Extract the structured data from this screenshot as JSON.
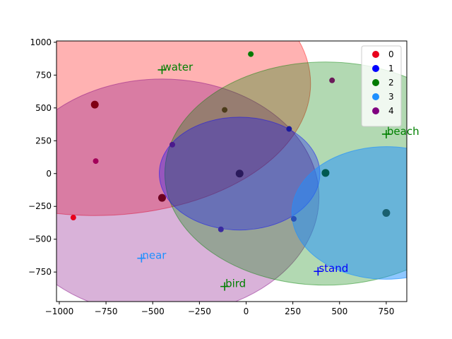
{
  "chart_data": {
    "type": "scatter",
    "xlim": [
      -1015,
      860
    ],
    "ylim": [
      -975,
      1010
    ],
    "x_ticks": [
      {
        "value": -1000,
        "label": "−1000"
      },
      {
        "value": -750,
        "label": "−750"
      },
      {
        "value": -500,
        "label": "−500"
      },
      {
        "value": -250,
        "label": "−250"
      },
      {
        "value": 0,
        "label": "0"
      },
      {
        "value": 250,
        "label": "250"
      },
      {
        "value": 500,
        "label": "500"
      },
      {
        "value": 750,
        "label": "750"
      }
    ],
    "y_ticks": [
      {
        "value": -750,
        "label": "−750"
      },
      {
        "value": -500,
        "label": "−500"
      },
      {
        "value": -250,
        "label": "−250"
      },
      {
        "value": 0,
        "label": "0"
      },
      {
        "value": 250,
        "label": "250"
      },
      {
        "value": 500,
        "label": "500"
      },
      {
        "value": 750,
        "label": "750"
      },
      {
        "value": 1000,
        "label": "1000"
      }
    ],
    "grid": false,
    "legend": {
      "placement": "top-right",
      "entries": [
        {
          "label": "0",
          "color": "#e8001c"
        },
        {
          "label": "1",
          "color": "#0000ff"
        },
        {
          "label": "2",
          "color": "#007a00"
        },
        {
          "label": "3",
          "color": "#1e90ff"
        },
        {
          "label": "4",
          "color": "#800080"
        }
      ]
    },
    "regions": [
      {
        "cluster": "0",
        "cx": -810,
        "cy": 685,
        "rx": 1155,
        "ry": 1005,
        "color": "#ff0000",
        "alpha": 0.3
      },
      {
        "cluster": "4",
        "cx": -450,
        "cy": -180,
        "rx": 840,
        "ry": 900,
        "color": "#800080",
        "alpha": 0.3
      },
      {
        "cluster": "2",
        "cx": 425,
        "cy": 0,
        "rx": 860,
        "ry": 850,
        "color": "#008000",
        "alpha": 0.3
      },
      {
        "cluster": "1",
        "cx": -35,
        "cy": 0,
        "rx": 430,
        "ry": 430,
        "color": "#0000ff",
        "alpha": 0.3
      },
      {
        "cluster": "3",
        "cx": 750,
        "cy": -300,
        "rx": 505,
        "ry": 505,
        "color": "#1e90ff",
        "alpha": 0.5
      }
    ],
    "points": [
      {
        "x": -810,
        "y": 525,
        "size": 10,
        "color": "#800015"
      },
      {
        "x": -805,
        "y": 95,
        "size": 7,
        "color": "#a3005a"
      },
      {
        "x": -925,
        "y": -335,
        "size": 7,
        "color": "#e8001c"
      },
      {
        "x": -450,
        "y": -185,
        "size": 10,
        "color": "#6b0020"
      },
      {
        "x": -395,
        "y": 220,
        "size": 7,
        "color": "#4b1a8c"
      },
      {
        "x": -115,
        "y": 485,
        "size": 7,
        "color": "#4b3b1a"
      },
      {
        "x": 25,
        "y": 910,
        "size": 7,
        "color": "#007a00"
      },
      {
        "x": 460,
        "y": 710,
        "size": 7,
        "color": "#6b1a5a"
      },
      {
        "x": 230,
        "y": 340,
        "size": 7,
        "color": "#1a1a9c"
      },
      {
        "x": -35,
        "y": 0,
        "size": 10,
        "color": "#2a1a5c"
      },
      {
        "x": 425,
        "y": 5,
        "size": 10,
        "color": "#005a50"
      },
      {
        "x": 750,
        "y": -300,
        "size": 10,
        "color": "#1a6070"
      },
      {
        "x": 255,
        "y": -345,
        "size": 7,
        "color": "#2850b8"
      },
      {
        "x": -135,
        "y": -425,
        "size": 7,
        "color": "#3a2aa0"
      }
    ],
    "words": [
      {
        "text": "water",
        "x": -450,
        "y": 790,
        "color": "#008000"
      },
      {
        "text": "beach",
        "x": 750,
        "y": 300,
        "color": "#008000"
      },
      {
        "text": "near",
        "x": -560,
        "y": -645,
        "color": "#1e90ff"
      },
      {
        "text": "stand",
        "x": 385,
        "y": -745,
        "color": "#0000ff"
      },
      {
        "text": "bird",
        "x": -115,
        "y": -860,
        "color": "#008000"
      }
    ]
  }
}
